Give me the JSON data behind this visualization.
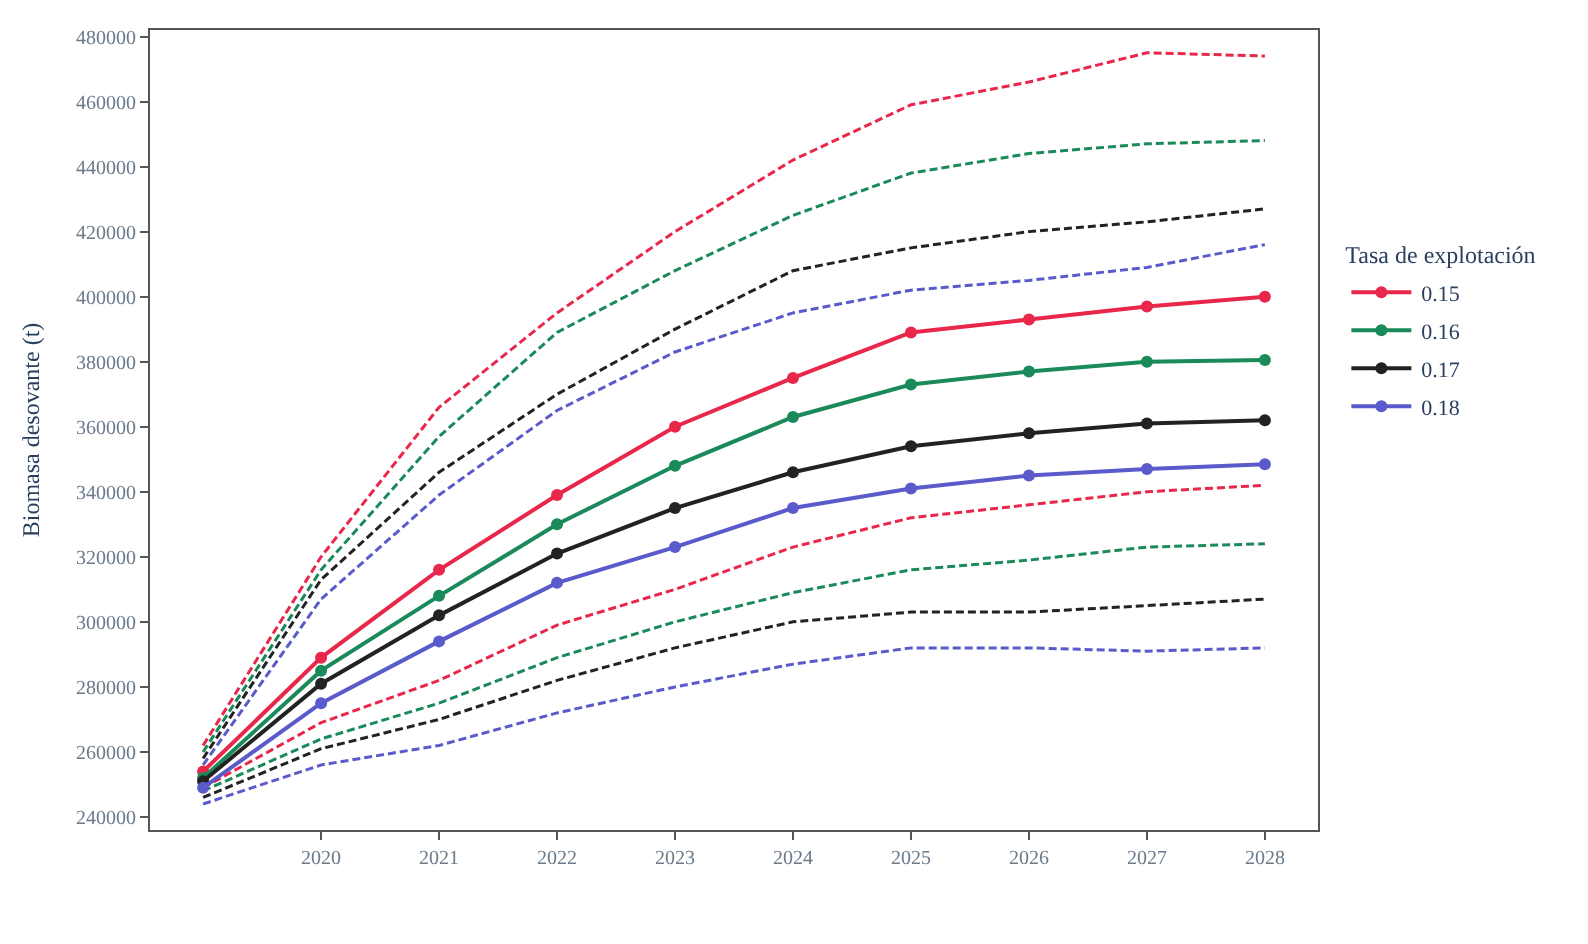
{
  "chart_data": {
    "type": "line",
    "ylabel": "Biomasa desovante (t)",
    "legend_title": "Tasa de explotación",
    "x": [
      2019,
      2020,
      2021,
      2022,
      2023,
      2024,
      2025,
      2026,
      2027,
      2028
    ],
    "xlim": [
      2018.55,
      2028.45
    ],
    "xticks": [
      2020,
      2021,
      2022,
      2023,
      2024,
      2025,
      2026,
      2027,
      2028
    ],
    "ylim": [
      236000,
      482000
    ],
    "yticks": [
      240000,
      260000,
      280000,
      300000,
      320000,
      340000,
      360000,
      380000,
      400000,
      420000,
      440000,
      460000,
      480000
    ],
    "grid": false,
    "legend": "right",
    "marker": "circle",
    "line_style": "solid",
    "series": [
      {
        "color": "#e8274b",
        "line_style": "dashed",
        "marker": "none",
        "values": [
          262000,
          320000,
          366000,
          395000,
          420000,
          442000,
          459000,
          466000,
          475000,
          474000
        ]
      },
      {
        "color": "#1a8a5a",
        "line_style": "dashed",
        "marker": "none",
        "values": [
          260000,
          316000,
          357000,
          389000,
          408000,
          425000,
          438000,
          444000,
          447000,
          448000
        ]
      },
      {
        "color": "#222222",
        "line_style": "dashed",
        "marker": "none",
        "values": [
          258000,
          313000,
          346000,
          370000,
          390000,
          408000,
          415000,
          420000,
          423000,
          427000
        ]
      },
      {
        "color": "#5a5acb",
        "line_style": "dashed",
        "marker": "none",
        "values": [
          256000,
          307000,
          339000,
          365000,
          383000,
          395000,
          402000,
          405000,
          409000,
          416000
        ]
      },
      {
        "color": "#e8274b",
        "line_style": "dashed",
        "marker": "none",
        "values": [
          249000,
          269000,
          282000,
          299000,
          310000,
          323000,
          332000,
          336000,
          340000,
          342000
        ]
      },
      {
        "color": "#1a8a5a",
        "line_style": "dashed",
        "marker": "none",
        "values": [
          248000,
          264000,
          275000,
          289000,
          300000,
          309000,
          316000,
          319000,
          323000,
          324000
        ]
      },
      {
        "color": "#222222",
        "line_style": "dashed",
        "marker": "none",
        "values": [
          246000,
          261000,
          270000,
          282000,
          292000,
          300000,
          303000,
          303000,
          305000,
          307000
        ]
      },
      {
        "color": "#5a5acb",
        "line_style": "dashed",
        "marker": "none",
        "values": [
          244000,
          256000,
          262000,
          272000,
          280000,
          287000,
          292000,
          292000,
          291000,
          292000
        ]
      },
      {
        "name": "0.15",
        "color": "#e8274b",
        "values": [
          254000,
          289000,
          316000,
          339000,
          360000,
          375000,
          389000,
          393000,
          397000,
          400000
        ]
      },
      {
        "name": "0.16",
        "color": "#1a8a5a",
        "values": [
          252000,
          285000,
          308000,
          330000,
          348000,
          363000,
          373000,
          377000,
          380000,
          380500
        ]
      },
      {
        "name": "0.17",
        "color": "#222222",
        "values": [
          251000,
          281000,
          302000,
          321000,
          335000,
          346000,
          354000,
          358000,
          361000,
          362000
        ]
      },
      {
        "name": "0.18",
        "color": "#5a5acb",
        "values": [
          249000,
          275000,
          294000,
          312000,
          323000,
          335000,
          341000,
          345000,
          347000,
          348500
        ]
      }
    ]
  }
}
